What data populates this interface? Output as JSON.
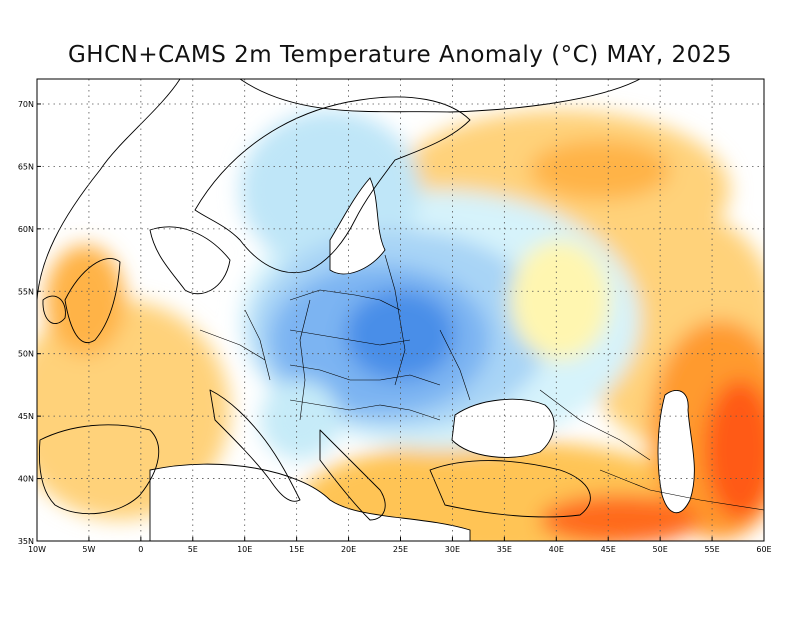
{
  "title": "GHCN+CAMS 2m Temperature Anomaly (°C) MAY, 2025",
  "map": {
    "region": "Europe",
    "lon_range": [
      -10,
      60
    ],
    "lat_range": [
      35,
      72
    ],
    "lon_ticks": [
      "10W",
      "5W",
      "0",
      "5E",
      "10E",
      "15E",
      "20E",
      "25E",
      "30E",
      "35E",
      "40E",
      "45E",
      "50E",
      "55E",
      "60E"
    ],
    "lat_ticks": [
      "35N",
      "40N",
      "45N",
      "50N",
      "55N",
      "60N",
      "65N",
      "70N"
    ],
    "grid": true,
    "colors": {
      "cold_strong": "#4a8ee8",
      "cold_medium": "#7cb4f2",
      "cold_light": "#a8d4f6",
      "cold_faint": "#d6f3fb",
      "neutral": "#ffffff",
      "warm_faint": "#fff6b0",
      "warm_light": "#ffe08a",
      "warm_medium": "#ffc455",
      "warm_strong": "#ff9a2e",
      "hot": "#ff6a1a",
      "very_hot": "#ff3c0a"
    }
  }
}
